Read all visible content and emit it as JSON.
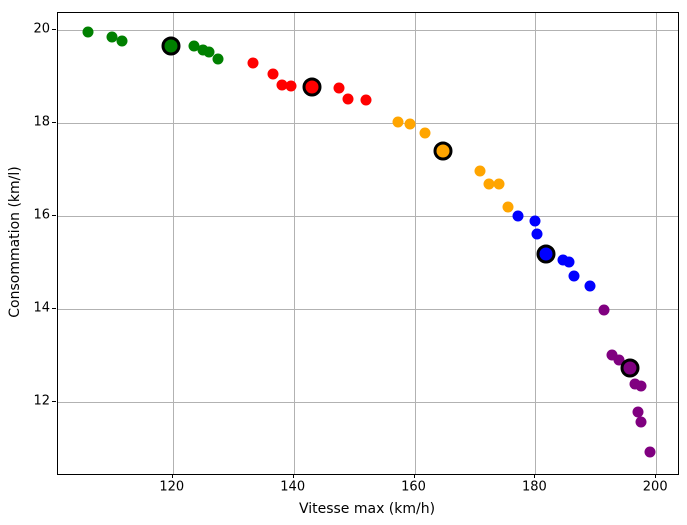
{
  "chart_data": {
    "type": "scatter",
    "title": "",
    "xlabel": "Vitesse max (km/h)",
    "ylabel": "Consommation (km/l)",
    "xlim": [
      101.0,
      203.6
    ],
    "ylim": [
      10.44,
      20.37
    ],
    "x_ticks": [
      120,
      140,
      160,
      180,
      200
    ],
    "y_ticks": [
      12,
      14,
      16,
      18,
      20
    ],
    "grid": true,
    "grid_color": "#b2b2b2",
    "legend": "none",
    "series": [
      {
        "name": "cluster-green",
        "color": "#008000",
        "points": [
          [
            106,
            19.97
          ],
          [
            110,
            19.85
          ],
          [
            111.5,
            19.77
          ],
          [
            123.5,
            19.66
          ],
          [
            125,
            19.58
          ],
          [
            126,
            19.54
          ],
          [
            127.5,
            19.37
          ]
        ]
      },
      {
        "name": "cluster-red",
        "color": "#ff0000",
        "points": [
          [
            133.3,
            19.3
          ],
          [
            136.5,
            19.06
          ],
          [
            138,
            18.82
          ],
          [
            139.5,
            18.79
          ],
          [
            147.5,
            18.75
          ],
          [
            149,
            18.52
          ],
          [
            152,
            18.5
          ]
        ]
      },
      {
        "name": "cluster-orange",
        "color": "#ffa500",
        "points": [
          [
            157.3,
            18.02
          ],
          [
            159.2,
            17.98
          ],
          [
            161.8,
            17.79
          ],
          [
            170.8,
            16.97
          ],
          [
            172.3,
            16.69
          ],
          [
            174,
            16.68
          ],
          [
            175.4,
            16.19
          ]
        ]
      },
      {
        "name": "cluster-blue",
        "color": "#0000ff",
        "points": [
          [
            177.1,
            16.0
          ],
          [
            180,
            15.88
          ],
          [
            180.3,
            15.6
          ],
          [
            184.5,
            15.06
          ],
          [
            185.5,
            15.01
          ],
          [
            186.4,
            14.7
          ],
          [
            189,
            14.5
          ]
        ]
      },
      {
        "name": "cluster-purple",
        "color": "#800080",
        "points": [
          [
            191.3,
            13.97
          ],
          [
            192.6,
            13.0
          ],
          [
            193.8,
            12.9
          ],
          [
            196.5,
            12.37
          ],
          [
            197.5,
            12.34
          ],
          [
            197,
            11.78
          ],
          [
            197.5,
            11.57
          ],
          [
            199,
            10.92
          ]
        ]
      }
    ],
    "centroids": [
      {
        "name": "centroid-green",
        "color": "#008000",
        "x": 119.7,
        "y": 19.66
      },
      {
        "name": "centroid-red",
        "color": "#ff0000",
        "x": 143.0,
        "y": 18.78
      },
      {
        "name": "centroid-orange",
        "color": "#ffa500",
        "x": 164.7,
        "y": 17.4
      },
      {
        "name": "centroid-blue",
        "color": "#0000ff",
        "x": 181.8,
        "y": 15.18
      },
      {
        "name": "centroid-purple",
        "color": "#800080",
        "x": 195.7,
        "y": 12.73
      }
    ]
  }
}
